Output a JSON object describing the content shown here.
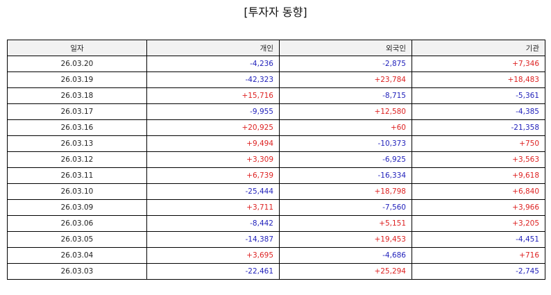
{
  "title": "[투자자 동향]",
  "colors": {
    "positive": "#dd2222",
    "negative": "#2222bb",
    "header_bg": "#f2f2f2"
  },
  "columns": [
    "일자",
    "개인",
    "외국인",
    "기관"
  ],
  "rows": [
    {
      "date": "26.03.20",
      "individual": "-4,236",
      "foreign": "-2,875",
      "institution": "+7,346"
    },
    {
      "date": "26.03.19",
      "individual": "-42,323",
      "foreign": "+23,784",
      "institution": "+18,483"
    },
    {
      "date": "26.03.18",
      "individual": "+15,716",
      "foreign": "-8,715",
      "institution": "-5,361"
    },
    {
      "date": "26.03.17",
      "individual": "-9,955",
      "foreign": "+12,580",
      "institution": "-4,385"
    },
    {
      "date": "26.03.16",
      "individual": "+20,925",
      "foreign": "+60",
      "institution": "-21,358"
    },
    {
      "date": "26.03.13",
      "individual": "+9,494",
      "foreign": "-10,373",
      "institution": "+750"
    },
    {
      "date": "26.03.12",
      "individual": "+3,309",
      "foreign": "-6,925",
      "institution": "+3,563"
    },
    {
      "date": "26.03.11",
      "individual": "+6,739",
      "foreign": "-16,334",
      "institution": "+9,618"
    },
    {
      "date": "26.03.10",
      "individual": "-25,444",
      "foreign": "+18,798",
      "institution": "+6,840"
    },
    {
      "date": "26.03.09",
      "individual": "+3,711",
      "foreign": "-7,560",
      "institution": "+3,966"
    },
    {
      "date": "26.03.06",
      "individual": "-8,442",
      "foreign": "+5,151",
      "institution": "+3,205"
    },
    {
      "date": "26.03.05",
      "individual": "-14,387",
      "foreign": "+19,453",
      "institution": "-4,451"
    },
    {
      "date": "26.03.04",
      "individual": "+3,695",
      "foreign": "-4,686",
      "institution": "+716"
    },
    {
      "date": "26.03.03",
      "individual": "-22,461",
      "foreign": "+25,294",
      "institution": "-2,745"
    }
  ]
}
